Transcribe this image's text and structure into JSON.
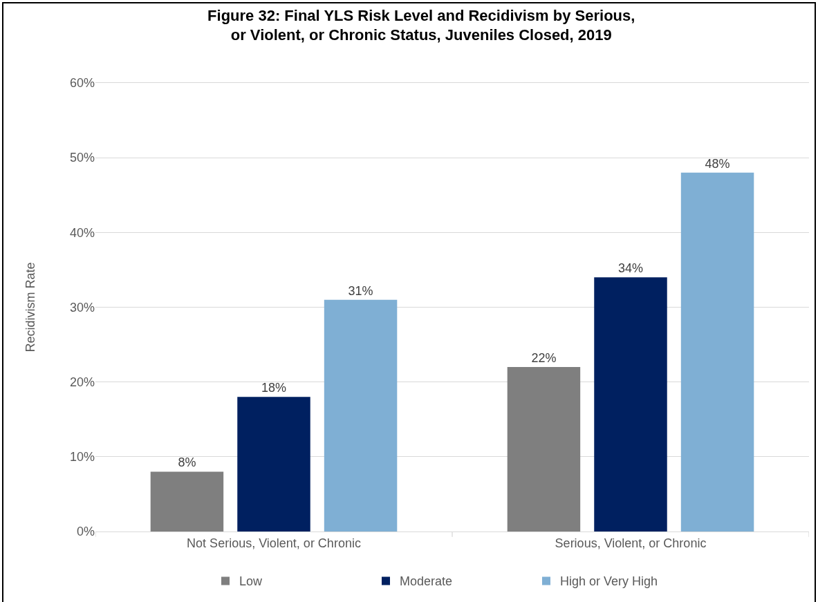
{
  "chart_data": {
    "type": "bar",
    "title": "Figure 32: Final YLS Risk Level and Recidivism by Serious, or Violent, or Chronic Status, Juveniles Closed, 2019",
    "ylabel": "Recidivism Rate",
    "categories": [
      "Not Serious, Violent, or Chronic",
      "Serious, Violent, or Chronic"
    ],
    "series": [
      {
        "name": "Low",
        "color": "#7f7f7f",
        "values": [
          8,
          22
        ],
        "value_labels": [
          "8%",
          "22%"
        ]
      },
      {
        "name": "Moderate",
        "color": "#002060",
        "values": [
          18,
          34
        ],
        "value_labels": [
          "18%",
          "34%"
        ]
      },
      {
        "name": "High or Very High",
        "color": "#7fafd4",
        "values": [
          31,
          48
        ],
        "value_labels": [
          "31%",
          "48%"
        ]
      }
    ],
    "ylim": [
      0,
      60
    ],
    "yticks": [
      {
        "value": 0,
        "label": "0%"
      },
      {
        "value": 10,
        "label": "10%"
      },
      {
        "value": 20,
        "label": "20%"
      },
      {
        "value": 30,
        "label": "30%"
      },
      {
        "value": 40,
        "label": "40%"
      },
      {
        "value": 50,
        "label": "50%"
      },
      {
        "value": 60,
        "label": "60%"
      }
    ],
    "grid": "y",
    "legend": "bottom"
  }
}
